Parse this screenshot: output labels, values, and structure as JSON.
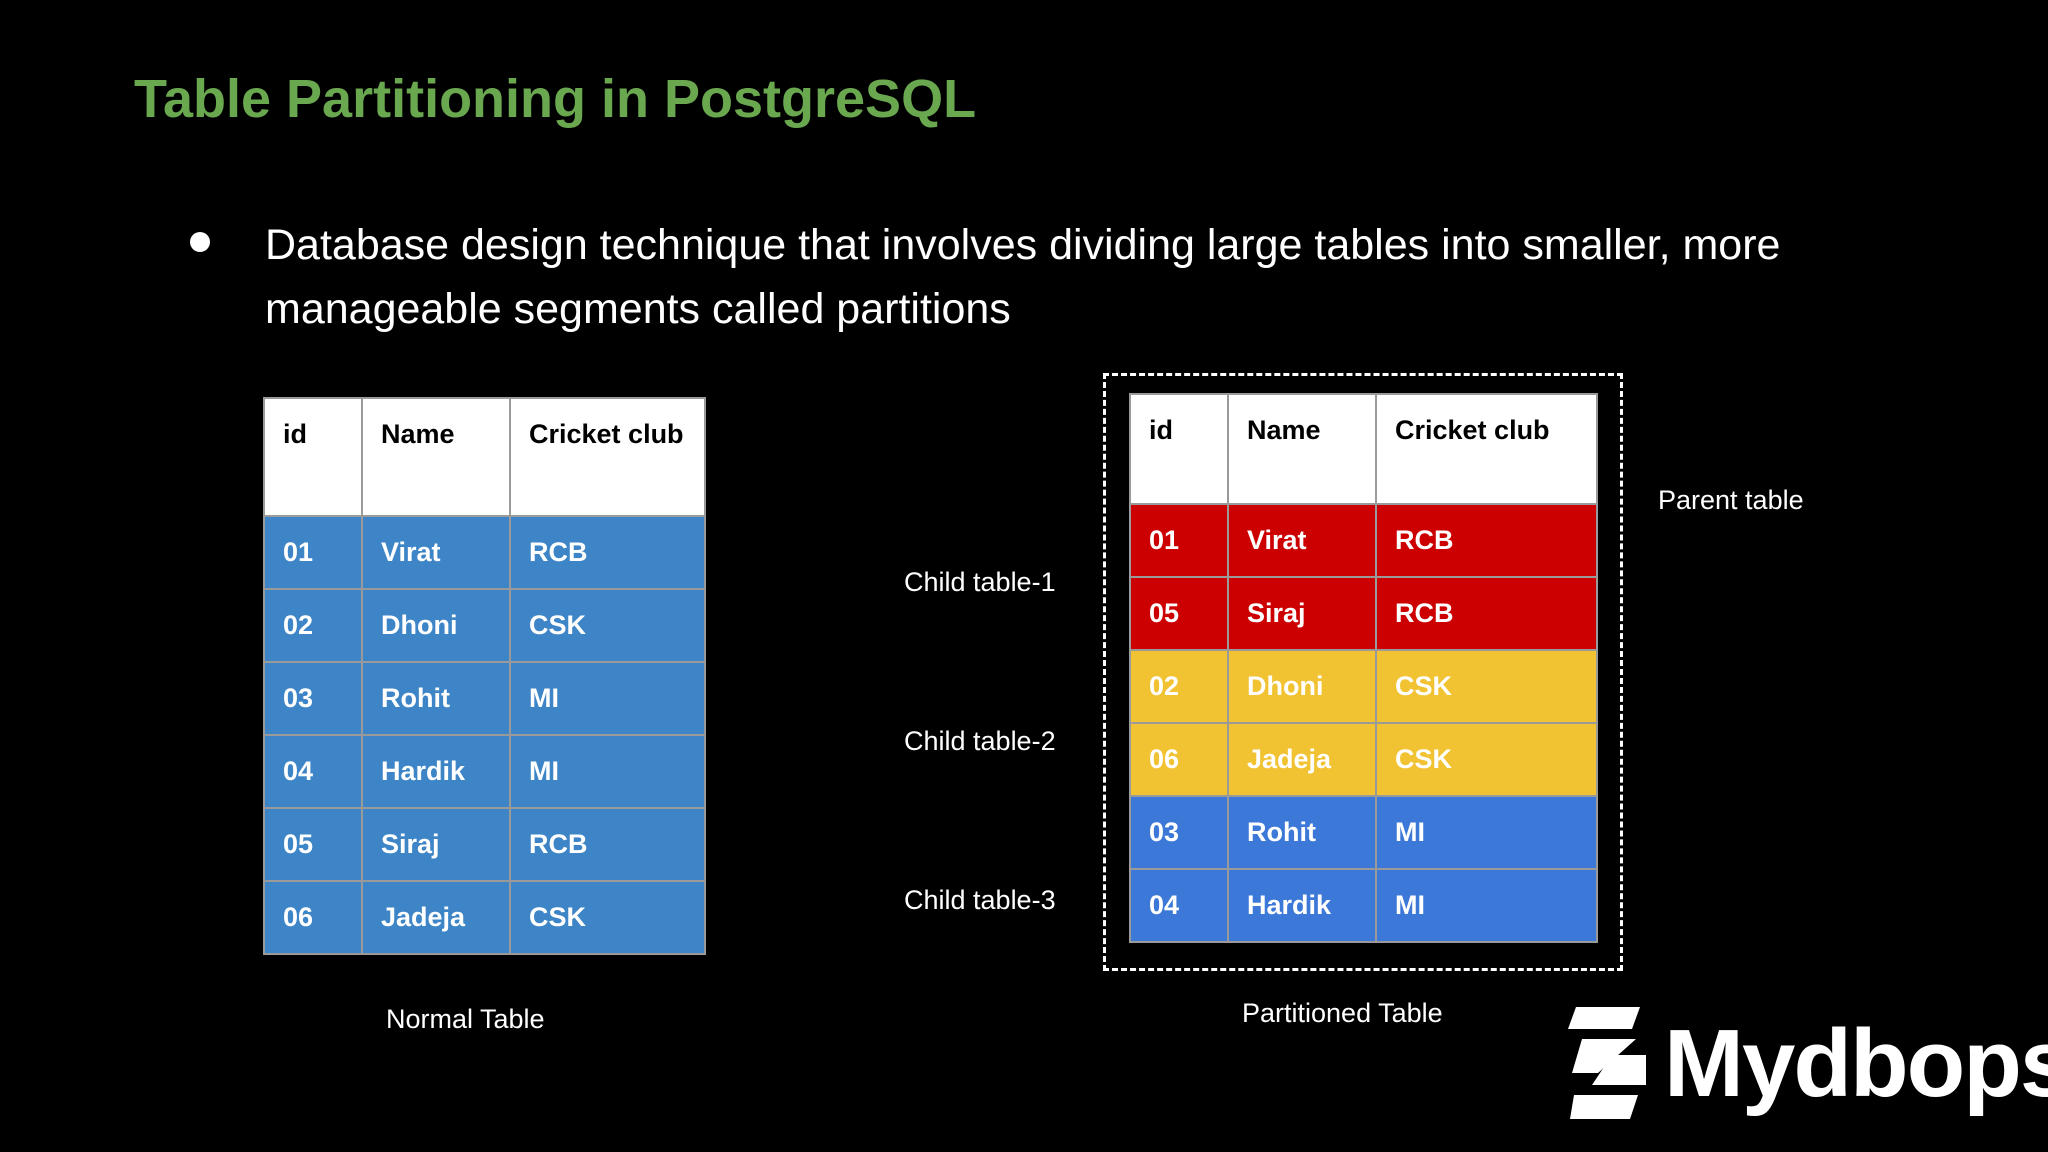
{
  "slide": {
    "title": "Table Partitioning in PostgreSQL",
    "bullet": "Database design technique that involves dividing large tables into smaller, more manageable segments called partitions"
  },
  "columns": [
    "id",
    "Name",
    "Cricket club"
  ],
  "normal_table": {
    "caption": "Normal Table",
    "row_color": "#3d85c6",
    "rows": [
      [
        "01",
        "Virat",
        "RCB"
      ],
      [
        "02",
        "Dhoni",
        "CSK"
      ],
      [
        "03",
        "Rohit",
        "MI"
      ],
      [
        "04",
        "Hardik",
        "MI"
      ],
      [
        "05",
        "Siraj",
        "RCB"
      ],
      [
        "06",
        "Jadeja",
        "CSK"
      ]
    ]
  },
  "partitioned_table": {
    "caption": "Partitioned Table",
    "parent_label": "Parent table",
    "partitions": [
      {
        "label": "Child table-1",
        "color": "#cc0000",
        "rows": [
          [
            "01",
            "Virat",
            "RCB"
          ],
          [
            "05",
            "Siraj",
            "RCB"
          ]
        ]
      },
      {
        "label": "Child table-2",
        "color": "#f1c232",
        "rows": [
          [
            "02",
            "Dhoni",
            "CSK"
          ],
          [
            "06",
            "Jadeja",
            "CSK"
          ]
        ]
      },
      {
        "label": "Child table-3",
        "color": "#3c78d8",
        "rows": [
          [
            "03",
            "Rohit",
            "MI"
          ],
          [
            "04",
            "Hardik",
            "MI"
          ]
        ]
      }
    ]
  },
  "brand": {
    "name": "Mydbops",
    "icon": "mydbops-logo-icon"
  }
}
